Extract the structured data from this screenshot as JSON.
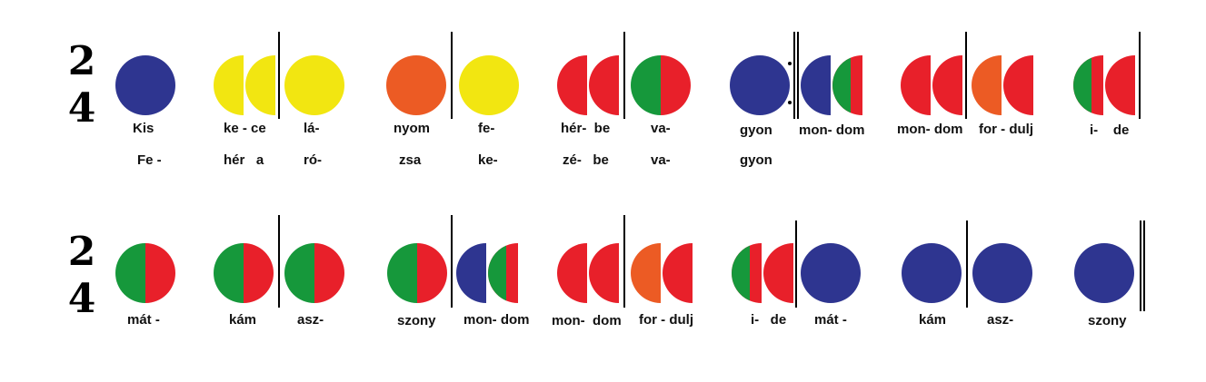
{
  "colors": {
    "blue": "#2e3590",
    "yellow": "#f2e611",
    "orange": "#ec5b24",
    "red": "#e8202a",
    "green": "#16983b"
  },
  "time_signature": {
    "top": "2",
    "bottom": "4"
  },
  "rows": [
    {
      "notes": [
        {
          "kind": "full",
          "color": "blue"
        },
        {
          "kind": "halfpair",
          "left": "yellow",
          "right": "yellow"
        },
        {
          "kind": "full",
          "color": "yellow"
        },
        {
          "kind": "full",
          "color": "orange"
        },
        {
          "kind": "full",
          "color": "yellow"
        },
        {
          "kind": "halfpair",
          "left": "red",
          "right": "red"
        },
        {
          "kind": "split",
          "left": "green",
          "right": "red"
        },
        {
          "kind": "full",
          "color": "blue"
        },
        {
          "kind": "halfpair",
          "left": "blue",
          "right": "green-red"
        },
        {
          "kind": "halfpair",
          "left": "red",
          "right": "red"
        },
        {
          "kind": "halfpair",
          "left": "orange",
          "right": "red"
        },
        {
          "kind": "halfpair",
          "left": "green-red",
          "right": "red"
        }
      ],
      "lyrics_line1": [
        "Kis",
        "ke - ce",
        "lá-",
        "nyom",
        "fe-",
        "hér-  be",
        "va-",
        "gyon",
        "mon- dom",
        "mon- dom",
        "for - dulj",
        "i-    de"
      ],
      "lyrics_line2": [
        "Fe -",
        "hér   a",
        "ró-",
        "zsa",
        "ke-",
        "zé-   be",
        "va-",
        "gyon"
      ]
    },
    {
      "notes": [
        {
          "kind": "split",
          "left": "green",
          "right": "red"
        },
        {
          "kind": "split",
          "left": "green",
          "right": "red"
        },
        {
          "kind": "split",
          "left": "green",
          "right": "red"
        },
        {
          "kind": "split",
          "left": "green",
          "right": "red"
        },
        {
          "kind": "halfpair",
          "left": "blue",
          "right": "green-red"
        },
        {
          "kind": "halfpair",
          "left": "red",
          "right": "red"
        },
        {
          "kind": "halfpair",
          "left": "orange",
          "right": "red"
        },
        {
          "kind": "halfpair",
          "left": "green-red",
          "right": "red"
        },
        {
          "kind": "full",
          "color": "blue"
        },
        {
          "kind": "full",
          "color": "blue"
        },
        {
          "kind": "full",
          "color": "blue"
        },
        {
          "kind": "full",
          "color": "blue"
        }
      ],
      "lyrics_line1": [
        "mát -",
        "kám",
        "asz-",
        "szony",
        "mon- dom",
        "mon-  dom",
        "for - dulj",
        "i-   de",
        "mát -",
        "kám",
        "asz-",
        "szony"
      ]
    }
  ]
}
